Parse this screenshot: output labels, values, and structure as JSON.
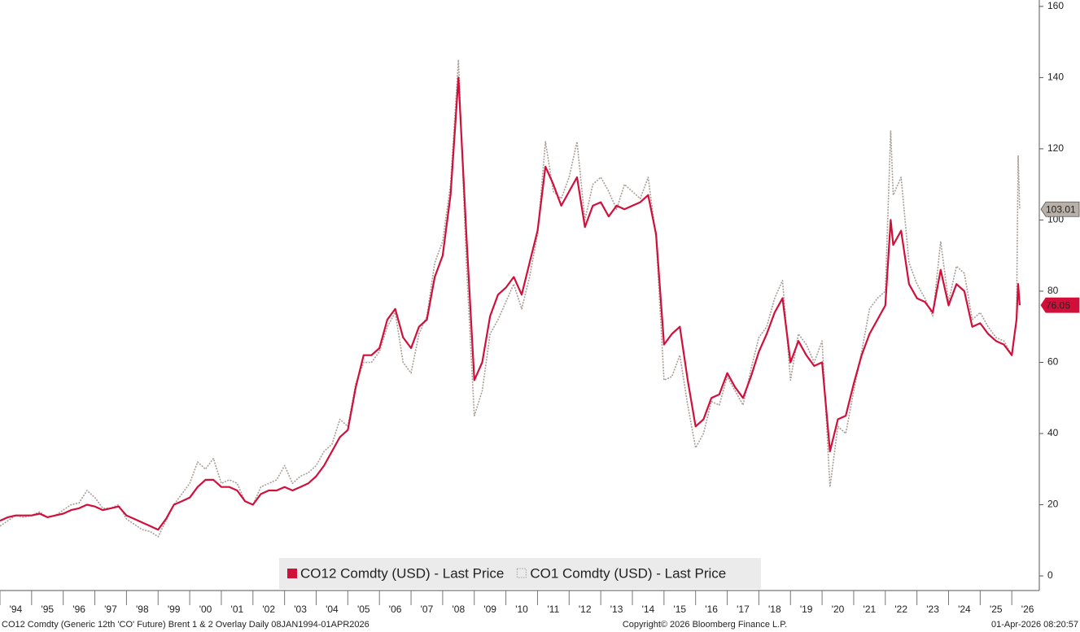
{
  "chart_data": {
    "type": "line",
    "x": [
      1994.0,
      1994.25,
      1994.5,
      1994.75,
      1995.0,
      1995.25,
      1995.5,
      1995.75,
      1996.0,
      1996.25,
      1996.5,
      1996.75,
      1997.0,
      1997.25,
      1997.5,
      1997.75,
      1998.0,
      1998.25,
      1998.5,
      1998.75,
      1999.0,
      1999.25,
      1999.5,
      1999.75,
      2000.0,
      2000.25,
      2000.5,
      2000.75,
      2001.0,
      2001.25,
      2001.5,
      2001.75,
      2002.0,
      2002.25,
      2002.5,
      2002.75,
      2003.0,
      2003.25,
      2003.5,
      2003.75,
      2004.0,
      2004.25,
      2004.5,
      2004.75,
      2005.0,
      2005.25,
      2005.5,
      2005.75,
      2006.0,
      2006.25,
      2006.5,
      2006.75,
      2007.0,
      2007.25,
      2007.5,
      2007.75,
      2008.0,
      2008.25,
      2008.5,
      2008.75,
      2009.0,
      2009.25,
      2009.5,
      2009.75,
      2010.0,
      2010.25,
      2010.5,
      2010.75,
      2011.0,
      2011.25,
      2011.5,
      2011.75,
      2012.0,
      2012.25,
      2012.5,
      2012.75,
      2013.0,
      2013.25,
      2013.5,
      2013.75,
      2014.0,
      2014.25,
      2014.5,
      2014.75,
      2015.0,
      2015.25,
      2015.5,
      2015.75,
      2016.0,
      2016.25,
      2016.5,
      2016.75,
      2017.0,
      2017.25,
      2017.5,
      2017.75,
      2018.0,
      2018.25,
      2018.5,
      2018.75,
      2019.0,
      2019.25,
      2019.5,
      2019.75,
      2020.0,
      2020.25,
      2020.5,
      2020.75,
      2021.0,
      2021.25,
      2021.5,
      2021.75,
      2022.0,
      2022.17,
      2022.25,
      2022.5,
      2022.75,
      2023.0,
      2023.25,
      2023.5,
      2023.75,
      2024.0,
      2024.25,
      2024.5,
      2024.75,
      2025.0,
      2025.25,
      2025.5,
      2025.75,
      2026.0,
      2026.15,
      2026.2,
      2026.25
    ],
    "series": [
      {
        "name": "CO12 Comdty (USD) - Last Price",
        "color": "#d0103a",
        "values": [
          15.5,
          16.5,
          17,
          17,
          17,
          17.5,
          16.5,
          17,
          17.5,
          18.5,
          19,
          20,
          19.5,
          18.5,
          19,
          19.5,
          17,
          16,
          15,
          14,
          13,
          16,
          20,
          21,
          22,
          25,
          27,
          27,
          25,
          25,
          24,
          21,
          20,
          23,
          24,
          24,
          25,
          24,
          25,
          26,
          28,
          31,
          35,
          39,
          41,
          53,
          62,
          62,
          64,
          72,
          75,
          67,
          64,
          70,
          72,
          84,
          90,
          107,
          140,
          96,
          55,
          60,
          73,
          79,
          81,
          84,
          79,
          88,
          97,
          115,
          110,
          104,
          108,
          112,
          98,
          104,
          105,
          101,
          104,
          103,
          104,
          105,
          107,
          96,
          65,
          68,
          70,
          55,
          42,
          44,
          50,
          51,
          57,
          53,
          50,
          56,
          63,
          68,
          74,
          78,
          60,
          66,
          62,
          59,
          60,
          35,
          44,
          45,
          54,
          62,
          68,
          72,
          76,
          100,
          93,
          97,
          82,
          78,
          77,
          74,
          86,
          76,
          82,
          80,
          70,
          71,
          68,
          66,
          65,
          62,
          72,
          82,
          76.06
        ]
      },
      {
        "name": "CO1 Comdty (USD) - Last Price",
        "color": "#a89e95",
        "values": [
          14,
          15.5,
          17,
          16.5,
          17,
          18,
          16.5,
          17,
          18.5,
          20,
          20.5,
          24,
          22,
          19,
          19,
          20,
          16,
          14.5,
          13,
          12.5,
          11,
          15.5,
          20,
          23,
          26,
          32,
          30,
          33,
          26,
          27,
          26,
          21,
          20,
          25,
          26,
          27,
          31,
          26,
          28,
          29,
          31,
          35,
          37,
          44,
          42,
          54,
          60,
          60,
          63,
          70,
          74,
          60,
          57,
          68,
          73,
          88,
          94,
          110,
          145,
          88,
          45,
          52,
          68,
          72,
          77,
          82,
          75,
          84,
          96,
          122,
          108,
          106,
          112,
          122,
          100,
          110,
          112,
          108,
          103,
          110,
          108,
          106,
          112,
          95,
          55,
          56,
          62,
          48,
          36,
          40,
          49,
          48,
          56,
          52,
          48,
          58,
          67,
          70,
          78,
          83,
          55,
          68,
          65,
          60,
          66,
          25,
          42,
          40,
          52,
          63,
          75,
          78,
          80,
          125,
          107,
          112,
          88,
          82,
          78,
          73,
          94,
          77,
          87,
          85,
          72,
          74,
          70,
          67,
          66,
          62,
          72,
          118,
          103.01
        ]
      }
    ],
    "xlim": [
      1994.0,
      2026.87
    ],
    "xticks": [
      {
        "value": 1994,
        "label": "'94"
      },
      {
        "value": 1995,
        "label": "'95"
      },
      {
        "value": 1996,
        "label": "'96"
      },
      {
        "value": 1997,
        "label": "'97"
      },
      {
        "value": 1998,
        "label": "'98"
      },
      {
        "value": 1999,
        "label": "'99"
      },
      {
        "value": 2000,
        "label": "'00"
      },
      {
        "value": 2001,
        "label": "'01"
      },
      {
        "value": 2002,
        "label": "'02"
      },
      {
        "value": 2003,
        "label": "'03"
      },
      {
        "value": 2004,
        "label": "'04"
      },
      {
        "value": 2005,
        "label": "'05"
      },
      {
        "value": 2006,
        "label": "'06"
      },
      {
        "value": 2007,
        "label": "'07"
      },
      {
        "value": 2008,
        "label": "'08"
      },
      {
        "value": 2009,
        "label": "'09"
      },
      {
        "value": 2010,
        "label": "'10"
      },
      {
        "value": 2011,
        "label": "'11"
      },
      {
        "value": 2012,
        "label": "'12"
      },
      {
        "value": 2013,
        "label": "'13"
      },
      {
        "value": 2014,
        "label": "'14"
      },
      {
        "value": 2015,
        "label": "'15"
      },
      {
        "value": 2016,
        "label": "'16"
      },
      {
        "value": 2017,
        "label": "'17"
      },
      {
        "value": 2018,
        "label": "'18"
      },
      {
        "value": 2019,
        "label": "'19"
      },
      {
        "value": 2020,
        "label": "'20"
      },
      {
        "value": 2021,
        "label": "'21"
      },
      {
        "value": 2022,
        "label": "'22"
      },
      {
        "value": 2023,
        "label": "'23"
      },
      {
        "value": 2024,
        "label": "'24"
      },
      {
        "value": 2025,
        "label": "'25"
      },
      {
        "value": 2026,
        "label": "'26"
      }
    ],
    "ylim": [
      -4.1,
      161.8
    ],
    "yticks": [
      0,
      20,
      40,
      60,
      80,
      100,
      120,
      140,
      160
    ],
    "legend": "bottom",
    "footer": {
      "left": "CO12 Comdty (Generic 12th 'CO' Future) Brent 1 & 2 Overlay Daily 08JAN1994-01APR2026",
      "center": "Copyright© 2026 Bloomberg Finance L.P.",
      "right": "01-Apr-2026 08:20:57"
    }
  }
}
